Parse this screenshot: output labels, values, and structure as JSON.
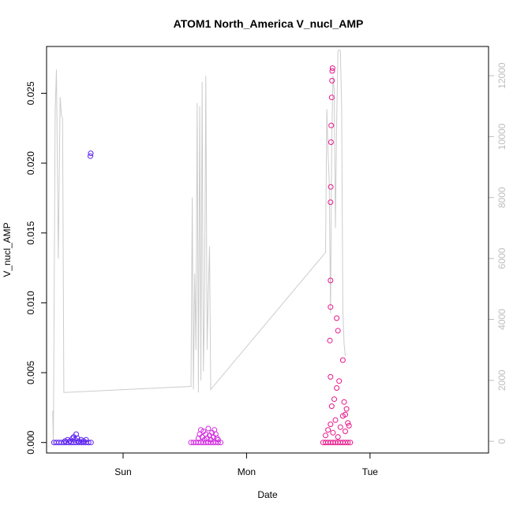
{
  "chart_data": {
    "type": "scatter",
    "title": "ATOM1 North_America V_nucl_AMP",
    "xlabel": "Date",
    "ylabel": "V_nucl_AMP",
    "x_ticks": [
      "Sun",
      "Mon",
      "Tue"
    ],
    "x_tick_positions_days": [
      1,
      2,
      3
    ],
    "xlim_days": [
      0.38,
      3.96
    ],
    "y_ticks": [
      "0.000",
      "0.005",
      "0.010",
      "0.015",
      "0.020",
      "0.025"
    ],
    "ylim": [
      -0.00075,
      0.02835
    ],
    "y2_ticks": [
      "0",
      "2000",
      "4000",
      "6000",
      "8000",
      "10000",
      "12000"
    ],
    "y2lim": [
      -385,
      12960
    ],
    "secondary_axis_color": "#bdbdbd",
    "grid": false,
    "legend": "none",
    "line_color": "#cccccc",
    "series": [
      {
        "color": "#5b22f0",
        "points": [
          [
            0.44,
            0.0
          ],
          [
            0.46,
            0.0
          ],
          [
            0.48,
            0.0
          ],
          [
            0.5,
            0.0
          ],
          [
            0.52,
            0.0
          ],
          [
            0.54,
            0.0
          ],
          [
            0.56,
            0.0
          ],
          [
            0.58,
            0.0
          ],
          [
            0.6,
            0.0
          ],
          [
            0.62,
            0.0
          ],
          [
            0.64,
            0.0
          ],
          [
            0.66,
            0.0
          ],
          [
            0.68,
            0.0
          ],
          [
            0.7,
            0.0
          ],
          [
            0.72,
            0.0
          ],
          [
            0.74,
            0.0
          ],
          [
            0.53,
            0.0001
          ],
          [
            0.55,
            0.0002
          ],
          [
            0.57,
            0.0001
          ],
          [
            0.59,
            0.0003
          ],
          [
            0.6,
            0.0004
          ],
          [
            0.61,
            0.0002
          ],
          [
            0.62,
            0.0006
          ],
          [
            0.63,
            0.0003
          ],
          [
            0.64,
            0.0001
          ],
          [
            0.66,
            0.0002
          ],
          [
            0.68,
            0.0001
          ],
          [
            0.7,
            0.0002
          ],
          [
            0.735,
            0.0205
          ],
          [
            0.738,
            0.0207
          ]
        ]
      },
      {
        "color": "#d22ae0",
        "points": [
          [
            1.55,
            0.0
          ],
          [
            1.57,
            0.0
          ],
          [
            1.59,
            0.0
          ],
          [
            1.61,
            0.0
          ],
          [
            1.63,
            0.0
          ],
          [
            1.65,
            0.0
          ],
          [
            1.67,
            0.0
          ],
          [
            1.69,
            0.0
          ],
          [
            1.71,
            0.0
          ],
          [
            1.73,
            0.0
          ],
          [
            1.75,
            0.0
          ],
          [
            1.77,
            0.0
          ],
          [
            1.79,
            0.0
          ],
          [
            1.61,
            0.0003
          ],
          [
            1.62,
            0.0006
          ],
          [
            1.63,
            0.0009
          ],
          [
            1.64,
            0.0004
          ],
          [
            1.65,
            0.0008
          ],
          [
            1.66,
            0.0002
          ],
          [
            1.67,
            0.0006
          ],
          [
            1.68,
            0.0003
          ],
          [
            1.69,
            0.001
          ],
          [
            1.7,
            0.0005
          ],
          [
            1.71,
            0.0002
          ],
          [
            1.72,
            0.0007
          ],
          [
            1.73,
            0.0004
          ],
          [
            1.74,
            0.0009
          ],
          [
            1.75,
            0.0006
          ],
          [
            1.76,
            0.0003
          ],
          [
            1.77,
            0.0002
          ]
        ]
      },
      {
        "color": "#e8168a",
        "points": [
          [
            2.62,
            0.0
          ],
          [
            2.64,
            0.0
          ],
          [
            2.66,
            0.0
          ],
          [
            2.68,
            0.0
          ],
          [
            2.7,
            0.0
          ],
          [
            2.72,
            0.0
          ],
          [
            2.74,
            0.0
          ],
          [
            2.76,
            0.0
          ],
          [
            2.78,
            0.0
          ],
          [
            2.8,
            0.0
          ],
          [
            2.82,
            0.0
          ],
          [
            2.84,
            0.0
          ],
          [
            2.64,
            0.0005
          ],
          [
            2.66,
            0.0009
          ],
          [
            2.68,
            0.0013
          ],
          [
            2.7,
            0.0007
          ],
          [
            2.72,
            0.0016
          ],
          [
            2.74,
            0.0004
          ],
          [
            2.76,
            0.0011
          ],
          [
            2.78,
            0.0019
          ],
          [
            2.8,
            0.0008
          ],
          [
            2.82,
            0.0014
          ],
          [
            2.69,
            0.0026
          ],
          [
            2.71,
            0.0031
          ],
          [
            2.73,
            0.0039
          ],
          [
            2.75,
            0.0044
          ],
          [
            2.79,
            0.0029
          ],
          [
            2.81,
            0.0024
          ],
          [
            2.68,
            0.0047
          ],
          [
            2.675,
            0.0073
          ],
          [
            2.68,
            0.0097
          ],
          [
            2.68,
            0.0116
          ],
          [
            2.68,
            0.0172
          ],
          [
            2.682,
            0.0183
          ],
          [
            2.684,
            0.0215
          ],
          [
            2.686,
            0.0227
          ],
          [
            2.69,
            0.0247
          ],
          [
            2.692,
            0.0259
          ],
          [
            2.694,
            0.0266
          ],
          [
            2.696,
            0.0268
          ],
          [
            2.73,
            0.0089
          ],
          [
            2.74,
            0.008
          ],
          [
            2.78,
            0.0059
          ],
          [
            2.8,
            0.002
          ],
          [
            2.83,
            0.0012
          ]
        ]
      }
    ],
    "secondary_series": {
      "name": "",
      "points": [
        [
          0.43,
          1000
        ],
        [
          0.435,
          -100
        ],
        [
          0.45,
          10800
        ],
        [
          0.46,
          12200
        ],
        [
          0.475,
          6000
        ],
        [
          0.49,
          11300
        ],
        [
          0.5,
          10700
        ],
        [
          0.51,
          10600
        ],
        [
          0.52,
          1600
        ],
        [
          1.55,
          1800
        ],
        [
          1.56,
          8000
        ],
        [
          1.57,
          1700
        ],
        [
          1.58,
          5500
        ],
        [
          1.59,
          3000
        ],
        [
          1.6,
          11100
        ],
        [
          1.61,
          1600
        ],
        [
          1.62,
          11000
        ],
        [
          1.63,
          2000
        ],
        [
          1.64,
          11800
        ],
        [
          1.65,
          2300
        ],
        [
          1.66,
          4500
        ],
        [
          1.67,
          12000
        ],
        [
          1.68,
          3000
        ],
        [
          1.69,
          4800
        ],
        [
          1.7,
          6400
        ],
        [
          1.71,
          1700
        ],
        [
          2.64,
          6200
        ],
        [
          2.65,
          10900
        ],
        [
          2.66,
          9500
        ],
        [
          2.67,
          8500
        ],
        [
          2.68,
          4200
        ],
        [
          2.69,
          9700
        ],
        [
          2.7,
          12000
        ],
        [
          2.71,
          11500
        ],
        [
          2.72,
          7000
        ],
        [
          2.73,
          10500
        ],
        [
          2.74,
          12800
        ],
        [
          2.75,
          12850
        ],
        [
          2.76,
          12800
        ],
        [
          2.77,
          10900
        ],
        [
          2.78,
          4300
        ],
        [
          2.79,
          3200
        ],
        [
          2.8,
          2800
        ]
      ]
    }
  }
}
